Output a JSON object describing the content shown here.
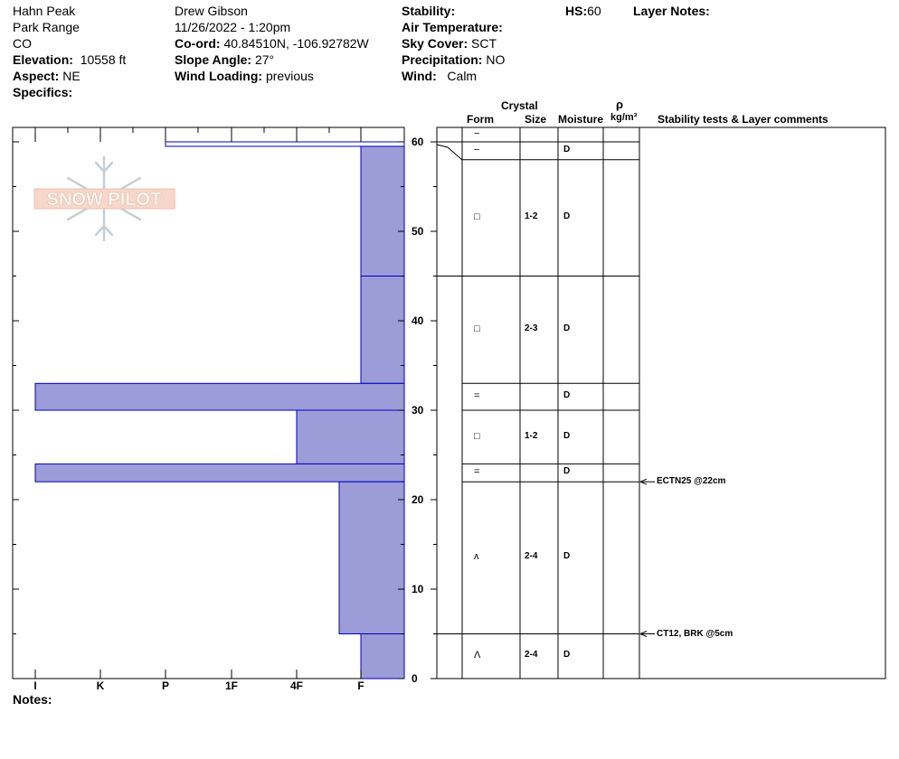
{
  "header": {
    "location": "Hahn Peak",
    "range": "Park Range",
    "state": "CO",
    "elevation_label": "Elevation:",
    "elevation": "10558 ft",
    "aspect_label": "Aspect:",
    "aspect": "NE",
    "specifics_label": "Specifics:",
    "observer": "Drew Gibson",
    "datetime": "11/26/2022 - 1:20pm",
    "coord_label": "Co-ord:",
    "coord": "40.84510N, -106.92782W",
    "slope_label": "Slope Angle:",
    "slope": "27°",
    "wind_loading_label": "Wind Loading:",
    "wind_loading": "previous",
    "stability_label": "Stability:",
    "air_temp_label": "Air Temperature:",
    "sky_label": "Sky Cover:",
    "sky": "SCT",
    "precip_label": "Precipitation:",
    "precip": "NO",
    "wind_label": "Wind:",
    "wind": "Calm",
    "hs_label": "HS:",
    "hs": "60",
    "layer_notes_label": "Layer Notes:"
  },
  "notes_label": "Notes:",
  "logo_text": "SNOW PILOT",
  "colors": {
    "hardness_fill": "#9c9cd8",
    "hardness_stroke": "#0000c0"
  },
  "chart_data": {
    "type": "bar",
    "orientation": "horizontal",
    "hardness_axis": [
      "I",
      "K",
      "P",
      "1F",
      "4F",
      "F"
    ],
    "depth_ticks": [
      "0",
      "10",
      "20",
      "30",
      "40",
      "50",
      "60"
    ],
    "depth_range": [
      0,
      60
    ],
    "layers": [
      {
        "top": 60,
        "bottom": 59.5,
        "hardness": "P"
      },
      {
        "top": 59.5,
        "bottom": 45,
        "hardness": "F"
      },
      {
        "top": 45,
        "bottom": 33,
        "hardness": "F"
      },
      {
        "top": 33,
        "bottom": 30,
        "hardness": "I"
      },
      {
        "top": 30,
        "bottom": 24,
        "hardness": "4F"
      },
      {
        "top": 24,
        "bottom": 22,
        "hardness": "I"
      },
      {
        "top": 22,
        "bottom": 5,
        "hardness": "4F-F"
      },
      {
        "top": 5,
        "bottom": 0,
        "hardness": "F"
      }
    ]
  },
  "table": {
    "col_crystal": "Crystal",
    "col_form": "Form",
    "col_size": "Size",
    "col_moisture": "Moisture",
    "col_rho": "ρ",
    "col_density_unit": "kg/m³",
    "col_comments": "Stability tests & Layer comments",
    "rows": [
      {
        "top": 61,
        "bottom": 60,
        "form": "−",
        "size": "",
        "moisture": ""
      },
      {
        "top": 60,
        "bottom": 58,
        "form": "−",
        "size": "",
        "moisture": "D"
      },
      {
        "top": 58,
        "bottom": 45,
        "form": "□",
        "size": "1-2",
        "moisture": "D"
      },
      {
        "top": 45,
        "bottom": 33,
        "form": "□",
        "size": "2-3",
        "moisture": "D"
      },
      {
        "top": 33,
        "bottom": 30,
        "form": "=",
        "size": "",
        "moisture": "D"
      },
      {
        "top": 30,
        "bottom": 24,
        "form": "□",
        "size": "1-2",
        "moisture": "D"
      },
      {
        "top": 24,
        "bottom": 22,
        "form": "=",
        "size": "",
        "moisture": "D"
      },
      {
        "top": 22,
        "bottom": 5,
        "form": "ʌ",
        "size": "2-4",
        "moisture": "D"
      },
      {
        "top": 5,
        "bottom": 0,
        "form": "Λ",
        "size": "2-4",
        "moisture": "D"
      }
    ],
    "comments": [
      {
        "depth": 22,
        "text": "ECTN25 @22cm"
      },
      {
        "depth": 5,
        "text": "CT12, BRK @5cm"
      }
    ]
  }
}
